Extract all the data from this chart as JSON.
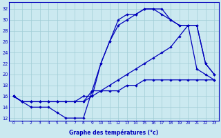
{
  "xlabel": "Graphe des températures (°c)",
  "background_color": "#cbe9f0",
  "grid_color": "#a0cdd6",
  "line_color": "#0000bb",
  "yticks": [
    12,
    14,
    16,
    18,
    20,
    22,
    24,
    26,
    28,
    30,
    32
  ],
  "marker": "D",
  "markersize": 2.2,
  "linewidth": 0.9,
  "curve_max": [
    16,
    15,
    15,
    15,
    15,
    15,
    15,
    15,
    15,
    17,
    22,
    26,
    30,
    31,
    31,
    32,
    32,
    32,
    30,
    29,
    29,
    29,
    22,
    20
  ],
  "curve_high": [
    16,
    15,
    15,
    15,
    15,
    15,
    15,
    15,
    15,
    16,
    22,
    26,
    29,
    30,
    31,
    32,
    32,
    31,
    30,
    29,
    29,
    29,
    22,
    20
  ],
  "curve_flat": [
    16,
    15,
    15,
    15,
    15,
    15,
    15,
    15,
    16,
    16,
    17,
    17,
    17,
    18,
    18,
    19,
    19,
    19,
    19,
    19,
    19,
    19,
    19,
    19
  ],
  "curve_min": [
    16,
    15,
    14,
    14,
    14,
    13,
    12,
    12,
    12,
    17,
    17,
    18,
    19,
    20,
    21,
    22,
    23,
    24,
    25,
    27,
    29,
    21,
    20,
    19
  ]
}
